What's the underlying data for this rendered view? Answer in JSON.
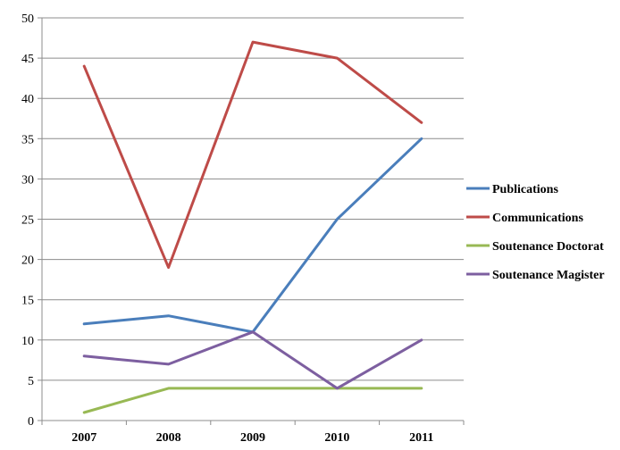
{
  "chart_data": {
    "type": "line",
    "title": "",
    "xlabel": "",
    "ylabel": "",
    "categories": [
      "2007",
      "2008",
      "2009",
      "2010",
      "2011"
    ],
    "ylim": [
      0,
      50
    ],
    "yticks": [
      0,
      5,
      10,
      15,
      20,
      25,
      30,
      35,
      40,
      45,
      50
    ],
    "grid": "horizontal",
    "legend_position": "right",
    "series": [
      {
        "name": "Publications",
        "color": "#4a7ebb",
        "values": [
          12,
          13,
          11,
          25,
          35
        ]
      },
      {
        "name": "Communications",
        "color": "#be4b48",
        "values": [
          44,
          19,
          47,
          45,
          37
        ]
      },
      {
        "name": "Soutenance Doctorat",
        "color": "#98b954",
        "values": [
          1,
          4,
          4,
          4,
          4
        ]
      },
      {
        "name": "Soutenance Magister",
        "color": "#7d5fa0",
        "values": [
          8,
          7,
          11,
          4,
          10
        ]
      }
    ]
  }
}
